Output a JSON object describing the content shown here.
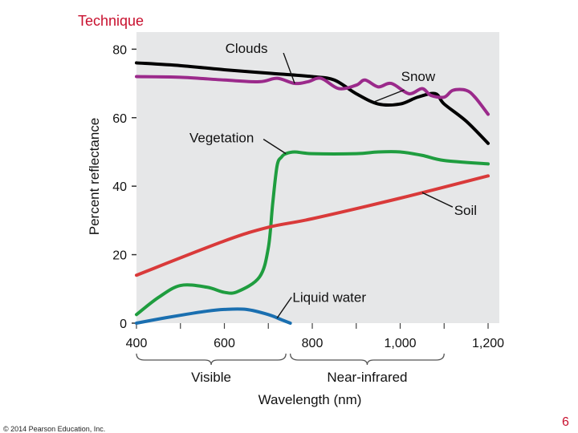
{
  "header": {
    "title": "Technique"
  },
  "footer": {
    "copyright": "© 2014 Pearson Education, Inc.",
    "page_number": "6"
  },
  "chart_data": {
    "type": "line",
    "title": "Technique",
    "xlabel": "Wavelength (nm)",
    "ylabel": "Percent reflectance",
    "xlim": [
      400,
      1200
    ],
    "ylim": [
      0,
      85
    ],
    "xticks": [
      400,
      600,
      800,
      1000,
      1200
    ],
    "xtick_labels": [
      "400",
      "600",
      "800",
      "1,000",
      "1,200"
    ],
    "yticks": [
      0,
      20,
      40,
      60,
      80
    ],
    "ytick_labels": [
      "0",
      "20",
      "40",
      "60",
      "80"
    ],
    "grid": false,
    "range_labels": [
      {
        "label": "Visible",
        "from": 400,
        "to": 740
      },
      {
        "label": "Near-infrared",
        "from": 750,
        "to": 1100
      }
    ],
    "series": [
      {
        "name": "Snow",
        "label": "Snow",
        "color": "#000000",
        "x": [
          400,
          500,
          600,
          700,
          800,
          850,
          900,
          950,
          1000,
          1040,
          1080,
          1100,
          1150,
          1200
        ],
        "y": [
          76,
          75.2,
          74,
          73,
          72,
          71,
          67,
          64,
          64,
          66,
          67,
          64,
          59,
          52.5
        ]
      },
      {
        "name": "Clouds",
        "label": "Clouds",
        "color": "#9b2a8b",
        "x": [
          400,
          500,
          600,
          680,
          720,
          760,
          790,
          820,
          860,
          900,
          920,
          950,
          980,
          1020,
          1050,
          1070,
          1100,
          1120,
          1150,
          1170,
          1200
        ],
        "y": [
          72,
          71.8,
          71,
          70.5,
          71.5,
          70,
          70.5,
          71.5,
          68.5,
          69.5,
          71,
          69,
          70,
          67,
          68.5,
          66.5,
          66,
          68,
          68,
          66,
          61
        ]
      },
      {
        "name": "Vegetation",
        "label": "Vegetation",
        "color": "#1f9d3f",
        "x": [
          400,
          450,
          500,
          560,
          600,
          630,
          680,
          700,
          710,
          720,
          730,
          740,
          760,
          800,
          900,
          950,
          1000,
          1050,
          1100,
          1200
        ],
        "y": [
          2.5,
          7.5,
          11,
          10.5,
          9,
          9.2,
          13.5,
          22,
          35,
          46,
          48.5,
          49.5,
          50,
          49.5,
          49.5,
          50,
          50,
          49,
          47.5,
          46.5
        ]
      },
      {
        "name": "Soil",
        "label": "Soil",
        "color": "#d93a3a",
        "x": [
          400,
          600,
          700,
          800,
          1000,
          1200
        ],
        "y": [
          14,
          24,
          28,
          30.5,
          36.5,
          43
        ]
      },
      {
        "name": "Liquid water",
        "label": "Liquid water",
        "color": "#1a6fb0",
        "x": [
          400,
          450,
          500,
          560,
          600,
          650,
          700,
          730,
          750
        ],
        "y": [
          0,
          1.2,
          2.3,
          3.5,
          4,
          4,
          2.5,
          1,
          0
        ]
      }
    ],
    "annotations": [
      {
        "text": "Snow",
        "series": "Snow",
        "at_x": 940
      },
      {
        "text": "Clouds",
        "series": "Clouds",
        "at_x": 760
      },
      {
        "text": "Vegetation",
        "series": "Vegetation",
        "at_x": 740
      },
      {
        "text": "Soil",
        "series": "Soil",
        "at_x": 1050
      },
      {
        "text": "Liquid water",
        "series": "Liquid water",
        "at_x": 720
      }
    ]
  }
}
